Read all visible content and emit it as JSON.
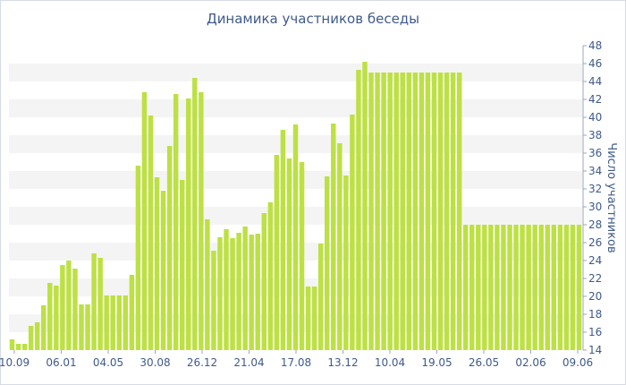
{
  "chart_data": {
    "type": "bar",
    "title": "Динамика участников беседы",
    "ylabel": "Число участников",
    "xlabel": "",
    "ylim": [
      14,
      48
    ],
    "yticks": [
      14,
      16,
      18,
      20,
      22,
      24,
      26,
      28,
      30,
      32,
      34,
      36,
      38,
      40,
      42,
      44,
      46,
      48
    ],
    "y_axis_position": "right",
    "grid": "horizontal-bands",
    "legend": "none",
    "x_tick_labels": [
      "10.09",
      "06.01",
      "04.05",
      "30.08",
      "26.12",
      "21.04",
      "17.08",
      "13.12",
      "10.04",
      "19.05",
      "26.05",
      "02.06",
      "09.06"
    ],
    "values": [
      15.2,
      14.7,
      14.7,
      16.7,
      17.1,
      19.0,
      21.5,
      21.2,
      23.5,
      24.0,
      23.1,
      19.1,
      19.1,
      24.8,
      24.3,
      20.1,
      20.1,
      20.1,
      20.1,
      22.4,
      34.6,
      42.8,
      40.2,
      33.3,
      31.8,
      36.8,
      42.6,
      33.0,
      42.1,
      44.4,
      42.8,
      28.6,
      25.1,
      26.6,
      27.5,
      26.5,
      27.1,
      27.8,
      26.9,
      27.0,
      29.3,
      30.5,
      35.8,
      38.6,
      35.4,
      39.2,
      35.0,
      21.1,
      21.1,
      25.9,
      33.4,
      39.3,
      37.1,
      33.5,
      40.3,
      45.3,
      46.2,
      45.0,
      45.0,
      45.0,
      45.0,
      45.0,
      45.0,
      45.0,
      45.0,
      45.0,
      45.0,
      45.0,
      45.0,
      45.0,
      45.0,
      45.0,
      28.0,
      28.0,
      28.0,
      28.0,
      28.0,
      28.0,
      28.0,
      28.0,
      28.0,
      28.0,
      28.0,
      28.0,
      28.0,
      28.0,
      28.0,
      28.0,
      28.0,
      28.0,
      28.0
    ],
    "colors": {
      "bar": "#bde043",
      "bar_edge": "#a6cc2a",
      "text": "#3f5a8a",
      "band": "#f4f4f4",
      "axis": "#98a6bd"
    }
  }
}
